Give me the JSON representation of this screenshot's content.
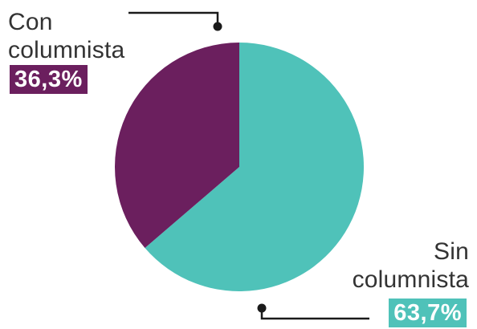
{
  "chart_data": {
    "type": "pie",
    "title": "",
    "slices": [
      {
        "label_line1": "Con",
        "label_line2": "columnista",
        "value": 36.3,
        "value_label": "36,3%",
        "color": "#6b1f5e"
      },
      {
        "label_line1": "Sin",
        "label_line2": "columnista",
        "value": 63.7,
        "value_label": "63,7%",
        "color": "#4fc2b9"
      }
    ],
    "start_angle": "12 o'clock",
    "direction": "clockwise, Sin columnista first",
    "legend": "callout labels with leader lines",
    "colors": {
      "leader_line": "#1a1a1a",
      "label_text": "#333333"
    }
  }
}
